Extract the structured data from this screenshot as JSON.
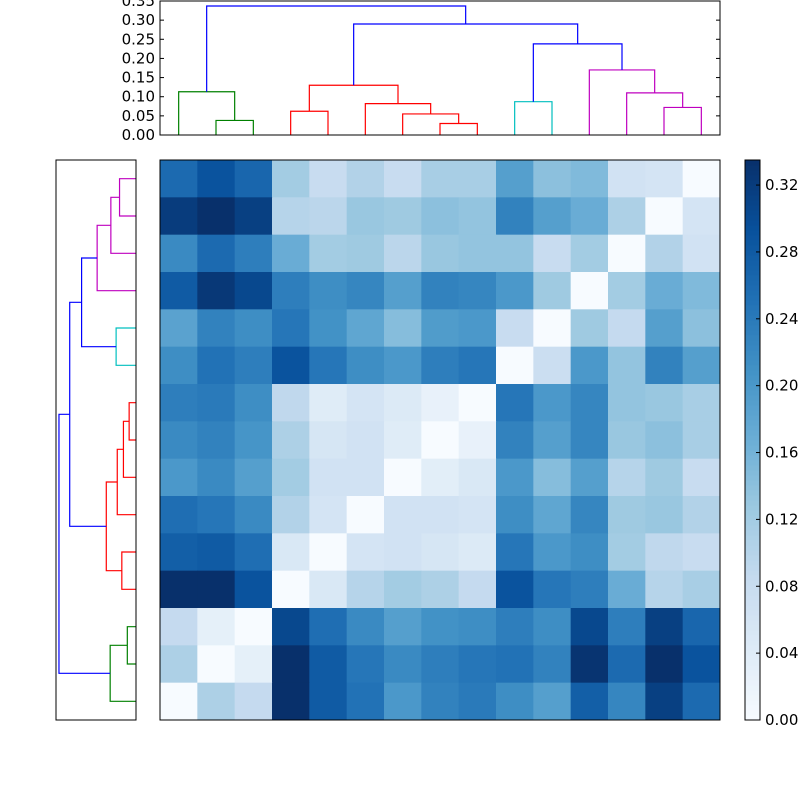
{
  "chart_data": [
    {
      "type": "dendrogram",
      "orientation": "top",
      "ylim": [
        0,
        0.35
      ],
      "yticks": [
        "0.00",
        "0.05",
        "0.10",
        "0.15",
        "0.20",
        "0.25",
        "0.30",
        "0.35"
      ],
      "leaf_count": 15,
      "links": [
        {
          "x": [
            15,
            15,
            25,
            25
          ],
          "y": [
            0,
            0.038,
            0.038,
            0
          ],
          "color": "#008000"
        },
        {
          "x": [
            5,
            5,
            20,
            20
          ],
          "y": [
            0,
            0.113,
            0.113,
            0.038
          ],
          "color": "#008000"
        },
        {
          "x": [
            35,
            35,
            45,
            45
          ],
          "y": [
            0,
            0.062,
            0.062,
            0
          ],
          "color": "#ff0000"
        },
        {
          "x": [
            75,
            75,
            85,
            85
          ],
          "y": [
            0,
            0.03,
            0.03,
            0
          ],
          "color": "#ff0000"
        },
        {
          "x": [
            65,
            65,
            80,
            80
          ],
          "y": [
            0,
            0.055,
            0.055,
            0.03
          ],
          "color": "#ff0000"
        },
        {
          "x": [
            55,
            55,
            72.5,
            72.5
          ],
          "y": [
            0,
            0.082,
            0.082,
            0.055
          ],
          "color": "#ff0000"
        },
        {
          "x": [
            40,
            40,
            63.75,
            63.75
          ],
          "y": [
            0.062,
            0.13,
            0.13,
            0.082
          ],
          "color": "#ff0000"
        },
        {
          "x": [
            95,
            95,
            105,
            105
          ],
          "y": [
            0,
            0.087,
            0.087,
            0
          ],
          "color": "#00bfbf"
        },
        {
          "x": [
            135,
            135,
            145,
            145
          ],
          "y": [
            0,
            0.072,
            0.072,
            0
          ],
          "color": "#bf00bf"
        },
        {
          "x": [
            125,
            125,
            140,
            140
          ],
          "y": [
            0,
            0.11,
            0.11,
            0.072
          ],
          "color": "#bf00bf"
        },
        {
          "x": [
            115,
            115,
            132.5,
            132.5
          ],
          "y": [
            0,
            0.17,
            0.17,
            0.11
          ],
          "color": "#bf00bf"
        },
        {
          "x": [
            100,
            100,
            123.75,
            123.75
          ],
          "y": [
            0.087,
            0.238,
            0.238,
            0.17
          ],
          "color": "#0000ff"
        },
        {
          "x": [
            51.875,
            51.875,
            111.875,
            111.875
          ],
          "y": [
            0.13,
            0.29,
            0.29,
            0.238
          ],
          "color": "#0000ff"
        },
        {
          "x": [
            12.5,
            12.5,
            81.875,
            81.875
          ],
          "y": [
            0.113,
            0.337,
            0.337,
            0.29
          ],
          "color": "#0000ff"
        }
      ]
    },
    {
      "type": "dendrogram",
      "orientation": "left",
      "xlim": [
        0.35,
        0
      ],
      "same_tree_as": "top"
    },
    {
      "type": "heatmap",
      "colormap": "Blues",
      "vmin": 0,
      "vmax": 0.335,
      "colorbar_ticks": [
        "0.00",
        "0.04",
        "0.08",
        "0.12",
        "0.16",
        "0.20",
        "0.24",
        "0.28",
        "0.32"
      ],
      "rows_top_to_bottom": [
        [
          0.26,
          0.29,
          0.265,
          0.12,
          0.08,
          0.105,
          0.08,
          0.115,
          0.115,
          0.19,
          0.14,
          0.15,
          0.065,
          0.06,
          0
        ],
        [
          0.32,
          0.335,
          0.315,
          0.1,
          0.095,
          0.13,
          0.125,
          0.14,
          0.135,
          0.23,
          0.19,
          0.17,
          0.11,
          0,
          0.06
        ],
        [
          0.22,
          0.26,
          0.235,
          0.17,
          0.12,
          0.125,
          0.095,
          0.13,
          0.135,
          0.135,
          0.08,
          0.12,
          0,
          0.105,
          0.065
        ],
        [
          0.28,
          0.325,
          0.305,
          0.235,
          0.215,
          0.225,
          0.19,
          0.23,
          0.225,
          0.2,
          0.125,
          0,
          0.12,
          0.17,
          0.15
        ],
        [
          0.185,
          0.23,
          0.215,
          0.245,
          0.21,
          0.18,
          0.145,
          0.195,
          0.2,
          0.08,
          0,
          0.125,
          0.085,
          0.19,
          0.14
        ],
        [
          0.215,
          0.25,
          0.235,
          0.29,
          0.245,
          0.215,
          0.2,
          0.235,
          0.245,
          0,
          0.075,
          0.2,
          0.135,
          0.23,
          0.19
        ],
        [
          0.235,
          0.24,
          0.215,
          0.09,
          0.04,
          0.06,
          0.045,
          0.025,
          0,
          0.245,
          0.2,
          0.225,
          0.135,
          0.13,
          0.115
        ],
        [
          0.22,
          0.23,
          0.205,
          0.11,
          0.055,
          0.065,
          0.04,
          0,
          0.025,
          0.23,
          0.19,
          0.225,
          0.13,
          0.14,
          0.115
        ],
        [
          0.2,
          0.22,
          0.19,
          0.12,
          0.065,
          0.065,
          0,
          0.035,
          0.05,
          0.2,
          0.145,
          0.19,
          0.1,
          0.125,
          0.08
        ],
        [
          0.255,
          0.245,
          0.22,
          0.105,
          0.06,
          0,
          0.065,
          0.065,
          0.06,
          0.215,
          0.18,
          0.225,
          0.125,
          0.13,
          0.105
        ],
        [
          0.275,
          0.28,
          0.255,
          0.05,
          0,
          0.06,
          0.065,
          0.055,
          0.045,
          0.245,
          0.2,
          0.215,
          0.12,
          0.09,
          0.08
        ],
        [
          0.335,
          0.335,
          0.29,
          0,
          0.05,
          0.1,
          0.12,
          0.11,
          0.085,
          0.29,
          0.245,
          0.235,
          0.17,
          0.1,
          0.115
        ],
        [
          0.085,
          0.03,
          0,
          0.305,
          0.255,
          0.22,
          0.19,
          0.21,
          0.215,
          0.235,
          0.215,
          0.305,
          0.235,
          0.315,
          0.265
        ],
        [
          0.11,
          0,
          0.03,
          0.335,
          0.28,
          0.245,
          0.22,
          0.235,
          0.245,
          0.25,
          0.23,
          0.33,
          0.26,
          0.335,
          0.29
        ],
        [
          0,
          0.11,
          0.085,
          0.335,
          0.28,
          0.25,
          0.2,
          0.23,
          0.24,
          0.215,
          0.19,
          0.275,
          0.225,
          0.315,
          0.26
        ]
      ]
    }
  ]
}
